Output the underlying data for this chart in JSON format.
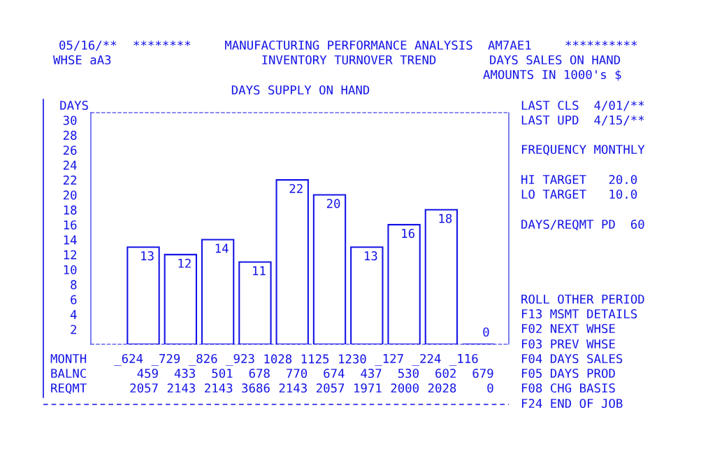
{
  "chart_data": {
    "type": "bar",
    "title": "MANUFACTURING PERFORMANCE ANALYSIS",
    "subtitle": "INVENTORY TURNOVER TREND",
    "xlabel": "MONTH",
    "ylabel": "DAYS",
    "categories": [
      "_624",
      "_729",
      "_826",
      "_923",
      "1028",
      "1125",
      "1230",
      "_127",
      "_224",
      "_116"
    ],
    "values": [
      13,
      12,
      14,
      11,
      22,
      20,
      13,
      16,
      18,
      0
    ],
    "color": "#1414e6",
    "data_labels": true,
    "ylim": [
      0,
      31
    ],
    "yticks": [
      2,
      4,
      6,
      8,
      10,
      12,
      14,
      16,
      18,
      20,
      22,
      24,
      26,
      28,
      30
    ],
    "grid": false,
    "annotations": [
      "05/16/**",
      "********",
      "AM7AE1",
      "**********",
      "WHSE aA3",
      "DAYS SALES ON HAND",
      "AMOUNTS IN 1000's $",
      "DAYS SUPPLY ON HAND",
      "LAST CLS  4/01/**",
      "LAST UPD  4/15/**",
      "FREQUENCY MONTHLY",
      "HI TARGET   20.0",
      "LO TARGET   10.0",
      "DAYS/REQMT PD  60",
      "ROLL OTHER PERIOD",
      "F13 MSMT DETAILS",
      "F02 NEXT WHSE",
      "F03 PREV WHSE",
      "F04 DAYS SALES",
      "F05 DAYS PROD",
      "F08 CHG BASIS",
      "F24 END OF JOB",
      "BALNC",
      "REQMT",
      "459",
      "433",
      "501",
      "678",
      "770",
      "674",
      "437",
      "530",
      "602",
      "679",
      "2057",
      "2143",
      "2143",
      "3686",
      "2143",
      "2057",
      "1971",
      "2000",
      "2028",
      "0"
    ]
  }
}
